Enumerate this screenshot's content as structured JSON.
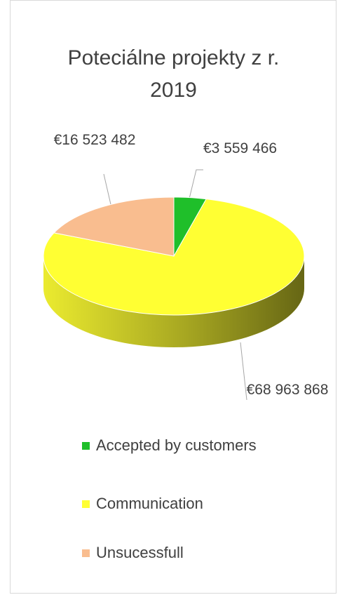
{
  "chart_data": {
    "type": "pie",
    "title": "Poteciálne projekty z r. 2019",
    "categories": [
      "Accepted by customers",
      "Communication",
      "Unsucessfull"
    ],
    "values": [
      3559466,
      68963868,
      16523482
    ],
    "value_labels": [
      "€3 559 466",
      "€68 963 868",
      "€16 523 482"
    ],
    "colors": [
      "#1fbf2a",
      "#ffff33",
      "#f9bd8f"
    ],
    "legend": "bottom"
  }
}
